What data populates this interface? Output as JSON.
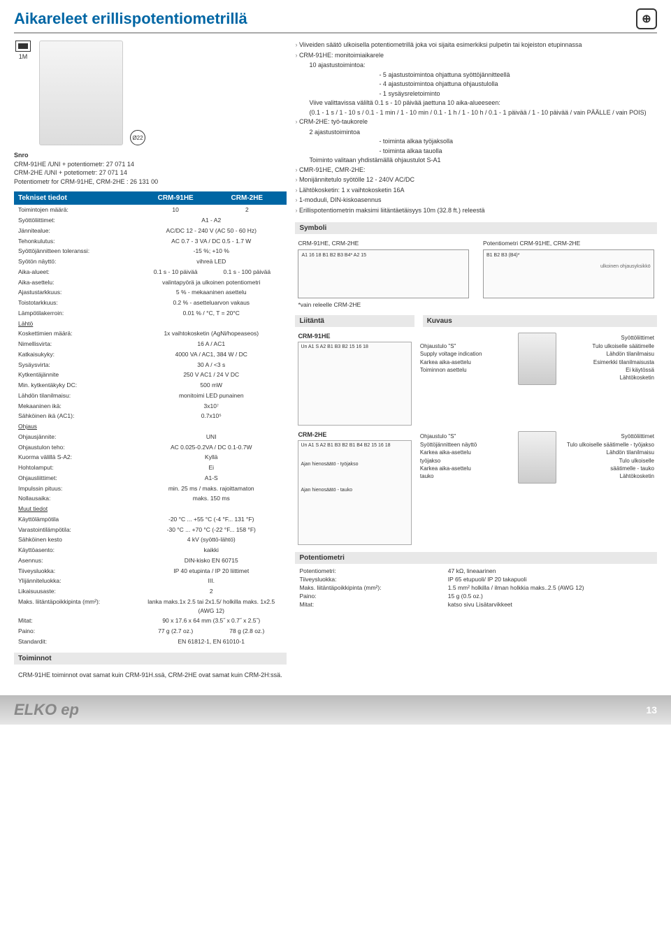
{
  "header": {
    "title": "Aikareleet erillispotentiometrillä",
    "module": "1M",
    "pot_dim": "Ø22"
  },
  "snro": {
    "label": "Snro",
    "l1": "CRM-91HE /UNI + potentiometr: 27 071 14",
    "l2": "CRM-2HE /UNI + potetiometr: 27 071 14",
    "l3": "Potentiometr for CRM-91HE, CRM-2HE : 26 131 00"
  },
  "tech": {
    "hdr": "Tekniset tiedot",
    "c1": "CRM-91HE",
    "c2": "CRM-2HE",
    "rows": [
      {
        "k": "Toimintojen määrä:",
        "v1": "10",
        "v2": "2"
      },
      {
        "k": "Syöttöliittimet:",
        "v": "A1 - A2"
      },
      {
        "k": "Jännitealue:",
        "v": "AC/DC 12 - 240 V (AC 50 - 60 Hz)"
      },
      {
        "k": "Tehonkulutus:",
        "v": "AC 0.7 - 3 VA / DC 0.5 - 1.7 W"
      },
      {
        "k": "Syöttöjännitteen toleranssi:",
        "v": "-15 %; +10 %"
      },
      {
        "k": "Syötön näyttö:",
        "v": "vihreä LED"
      },
      {
        "k": "Aika-alueet:",
        "v1": "0.1 s - 10 päivää",
        "v2": "0.1 s - 100 päivää"
      },
      {
        "k": "Aika-asettelu:",
        "v": "valintapyörä ja ulkoinen potentiometri"
      },
      {
        "k": "Ajastustarkkuus:",
        "v": "5 % - mekaaninen asettelu"
      },
      {
        "k": "Toistotarkkuus:",
        "v": "0.2 % - asetteluarvon vakaus"
      },
      {
        "k": "Lämpötilakerroin:",
        "v": "0.01 % / °C, T = 20°C"
      },
      {
        "k": "Lähtö",
        "u": true
      },
      {
        "k": "Koskettimien määrä:",
        "v": "1x vaihtokosketin (AgNi/hopeaseos)"
      },
      {
        "k": "Nimellisvirta:",
        "v": "16 A / AC1"
      },
      {
        "k": "Katkaisukyky:",
        "v": "4000 VA / AC1, 384 W / DC"
      },
      {
        "k": "Sysäysvirta:",
        "v": "30 A / <3 s"
      },
      {
        "k": "Kytkentäjännite",
        "v": "250 V AC1 / 24 V DC"
      },
      {
        "k": "Min. kytkentäkyky DC:",
        "v": "500 mW"
      },
      {
        "k": "Lähdön tilanilmaisu:",
        "v": "monitoimi LED punainen"
      },
      {
        "k": "Mekaaninen ikä:",
        "v": "3x10⁷"
      },
      {
        "k": "Sähköinen ikä (AC1):",
        "v": "0.7x10⁵"
      },
      {
        "k": "Ohjaus",
        "u": true
      },
      {
        "k": "Ohjausjännite:",
        "v": "UNI"
      },
      {
        "k": "Ohjaustulon teho:",
        "v": "AC 0.025-0.2VA / DC 0.1-0.7W"
      },
      {
        "k": "Kuorma välillä S-A2:",
        "v": "Kyllä"
      },
      {
        "k": "Hohtolamput:",
        "v": "Ei"
      },
      {
        "k": "Ohjausliittimet:",
        "v": "A1-S"
      },
      {
        "k": "Impulssin pituus:",
        "v": "min. 25 ms / maks. rajoittamaton"
      },
      {
        "k": "Nollausaika:",
        "v": "maks. 150 ms"
      },
      {
        "k": "Muut tiedot",
        "u": true
      },
      {
        "k": "Käyttölämpötila",
        "v": "-20 °C ... +55 °C (-4 °F... 131 °F)"
      },
      {
        "k": "Varastointilämpötila:",
        "v": "-30 °C ... +70 °C (-22 °F... 158 °F)"
      },
      {
        "k": "Sähköinen kesto",
        "v": "4 kV (syöttö-lähtö)"
      },
      {
        "k": "Käyttöasento:",
        "v": "kaikki"
      },
      {
        "k": "Asennus:",
        "v": "DIN-kisko EN 60715"
      },
      {
        "k": "Tiiveysluokka:",
        "v": "IP 40 etupinta / IP 20 liittimet"
      },
      {
        "k": "Ylijänniteluokka:",
        "v": "III."
      },
      {
        "k": "Likaisuusaste:",
        "v": "2"
      },
      {
        "k": "Maks. liitäntäpoikkipinta (mm²):",
        "v": "lanka maks.1x 2.5 tai 2x1.5/ holkilla maks. 1x2.5 (AWG 12)"
      },
      {
        "k": "Mitat:",
        "v": "90 x 17.6 x 64 mm (3.5˝ x 0.7˝ x 2.5˝)"
      },
      {
        "k": "Paino:",
        "v1": "77 g (2.7 oz.)",
        "v2": "78 g (2.8 oz.)"
      },
      {
        "k": "Standardit:",
        "v": "EN 61812-1, EN 61010-1"
      }
    ]
  },
  "features": {
    "items": [
      "Viiveiden säätö ulkoisella potentiometrillä joka voi sijaita esimerkiksi pulpetin tai kojeiston etupinnassa",
      "CRM-91HE: monitoimiaikarele",
      "CRM-2HE: työ-taukorele",
      "CMR-91HE, CMR-2HE:",
      "Monijännitetulo syötölle 12 - 240V AC/DC",
      "Lähtökosketin: 1 x vaihtokosketin 16A",
      "1-moduuli, DIN-kiskoasennus",
      "Erillispotentiometrin maksimi liitäntäetäisyys 10m (32.8 ft.) releestä"
    ],
    "sub1_lead": "10 ajastustoimintoa:",
    "sub1": [
      "- 5 ajastustoimintoa ohjattuna syöttöjännitteellä",
      "- 4 ajastustoimintoa ohjattuna ohjaustulolla",
      "- 1 sysäysreletoiminto"
    ],
    "sub1b": "Viive valittavissa väliltä 0.1 s - 10 päivää jaettuna 10 aika-alueeseen:",
    "sub1c": "(0.1 - 1 s / 1 - 10 s / 0.1 - 1 min / 1 - 10 min / 0.1 - 1 h / 1 - 10 h / 0.1 - 1 päivää / 1 - 10 päivää / vain PÄÄLLE / vain POIS)",
    "sub2_lead": "2 ajastustoimintoa",
    "sub2": [
      "- toiminta alkaa työjaksolla",
      "- toiminta alkaa tauolla"
    ],
    "sub2b": "Toiminto valitaan yhdistämällä ohjaustulot S-A1"
  },
  "symboli": {
    "hdr": "Symboli",
    "t1": "CRM-91HE, CRM-2HE",
    "t2": "Potentiometri CRM-91HE, CRM-2HE",
    "pins1": "A1  16  18  B1  B2  B3  B4*  A2  15",
    "note": "*vain releelle CRM-2HE",
    "pins2": "B1  B2  B3  (B4)*",
    "ext": "ulkoinen ohjausyksikkö"
  },
  "liitanta": {
    "hdr": "Liitäntä",
    "kuvaus_hdr": "Kuvaus",
    "t1": "CRM-91HE",
    "t2": "CRM-2HE",
    "w1_labels": "Un  A1 S A2  B1 B3 B2  15 16 18",
    "w2_labels": "Un  A1 S A2  B1 B3 B2  B1 B4 B2  15 16 18",
    "w2_side1": "Ajan hienosäätö - työjakso",
    "w2_side2": "Ajan hienosäätö - tauko",
    "k1": [
      "Ohjaustulo \"S\"",
      "Supply voltage indication",
      "Karkea aika-asettelu",
      "",
      "Toiminnon asettelu"
    ],
    "k1r": [
      "Syöttöliittimet",
      "Tulo ulkoiselle säätimelle",
      "Lähdön tilanilmaisu",
      "Esimerkki tilanilmaisusta",
      "",
      "",
      "Ei käytössä",
      "",
      "Lähtökosketin"
    ],
    "k2": [
      "Ohjaustulo \"S\"",
      "Syöttöjännitteen näyttö",
      "Karkea aika-asettelu",
      "työjakso",
      "Karkea aika-asettelu",
      "tauko"
    ],
    "k2r": [
      "Syöttöliittimet",
      "",
      "Tulo ulkoiselle säätimelle - työjakso",
      "",
      "Lähdön tilanilmaisu",
      "",
      "",
      "Tulo ulkoiselle",
      "säätimelle - tauko",
      "Lähtökosketin"
    ]
  },
  "pot": {
    "hdr": "Potentiometri",
    "rows": [
      {
        "k": "Potentiometri:",
        "v": "47 kΩ, lineaarinen"
      },
      {
        "k": "Tiiveysluokka:",
        "v": "IP 65 etupuoli/ IP 20 takapuoli"
      },
      {
        "k": "Maks. liitäntäpoikkipinta (mm²):",
        "v": "1.5 mm² holkilla / ilman holkkia maks..2.5 (AWG 12)"
      },
      {
        "k": "Paino:",
        "v": "15 g (0.5 oz.)"
      },
      {
        "k": "Mitat:",
        "v": "katso sivu Lisätarvikkeet"
      }
    ]
  },
  "toiminnot": {
    "hdr": "Toiminnot",
    "txt": "CRM-91HE toiminnot ovat samat kuin CRM-91H.ssä, CRM-2HE ovat samat kuin CRM-2H:ssä."
  },
  "footer": {
    "logo": "ELKO ep",
    "page": "13"
  }
}
